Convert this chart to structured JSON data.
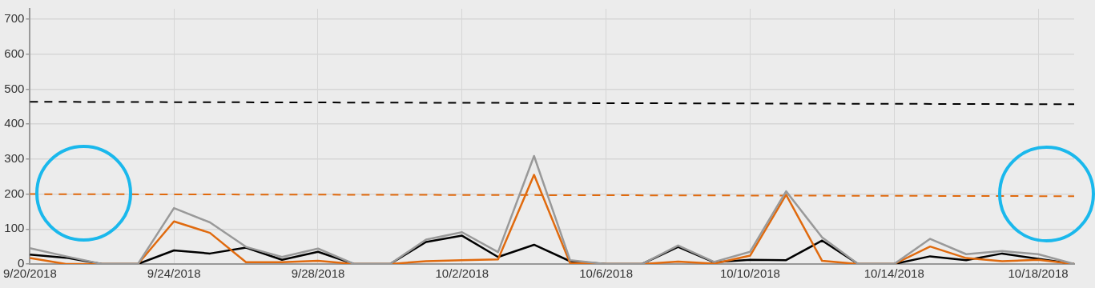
{
  "chart_data": {
    "type": "line",
    "categories": [
      "9/20/2018",
      null,
      null,
      null,
      "9/24/2018",
      null,
      null,
      null,
      "9/28/2018",
      null,
      null,
      null,
      "10/2/2018",
      null,
      null,
      null,
      "10/6/2018",
      null,
      null,
      null,
      "10/10/2018",
      null,
      null,
      null,
      "10/14/2018",
      null,
      null,
      null,
      "10/18/2018",
      null
    ],
    "series": [
      {
        "color": "#999999",
        "values": [
          45,
          22,
          0,
          0,
          160,
          119,
          49,
          20,
          44,
          0,
          0,
          70,
          91,
          34,
          309,
          11,
          0,
          0,
          53,
          6,
          35,
          208,
          76,
          0,
          0,
          72,
          28,
          37,
          28,
          0
        ]
      },
      {
        "color": "#e06a0e",
        "values": [
          17,
          0,
          0,
          0,
          122,
          89,
          5,
          5,
          9,
          0,
          0,
          8,
          11,
          13,
          255,
          3,
          0,
          0,
          7,
          1,
          24,
          198,
          9,
          0,
          0,
          50,
          17,
          8,
          12,
          0
        ]
      },
      {
        "color": "#000000",
        "values": [
          27,
          18,
          0,
          0,
          39,
          30,
          47,
          12,
          35,
          0,
          0,
          63,
          81,
          20,
          55,
          8,
          0,
          0,
          49,
          5,
          12,
          11,
          67,
          0,
          0,
          22,
          11,
          30,
          15,
          0
        ]
      },
      {
        "color": "#000000",
        "line_style": "dashed",
        "values": [
          464,
          null,
          null,
          null,
          null,
          null,
          null,
          null,
          null,
          null,
          null,
          null,
          null,
          null,
          null,
          null,
          null,
          null,
          null,
          null,
          null,
          null,
          null,
          null,
          null,
          null,
          null,
          null,
          null,
          457
        ]
      },
      {
        "color": "#e06a0e",
        "line_style": "dashed",
        "values": [
          200,
          null,
          null,
          null,
          null,
          null,
          null,
          null,
          null,
          null,
          null,
          null,
          null,
          null,
          null,
          null,
          null,
          null,
          null,
          null,
          null,
          null,
          null,
          null,
          null,
          null,
          null,
          null,
          null,
          194
        ]
      }
    ],
    "ylim": [
      0,
      730
    ],
    "yticks": [
      0,
      100,
      200,
      300,
      400,
      500,
      600,
      700
    ],
    "grid": true,
    "legend": false,
    "marker": "none",
    "line_style": "solid"
  }
}
